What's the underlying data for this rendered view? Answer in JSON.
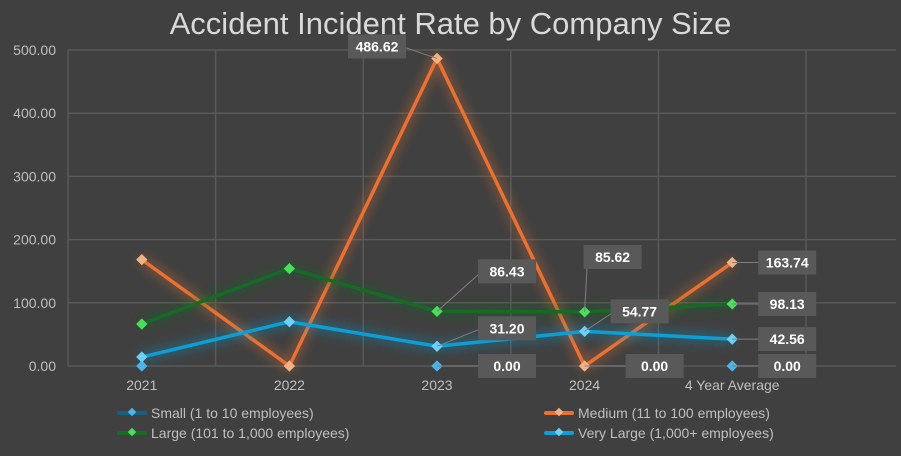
{
  "chart_data": {
    "type": "line",
    "title": "Accident Incident Rate by Company Size",
    "categories": [
      "2021",
      "2022",
      "2023",
      "2024",
      "4 Year Average"
    ],
    "ylim": [
      0,
      500
    ],
    "yticks": [
      "0.00",
      "100.00",
      "200.00",
      "300.00",
      "400.00",
      "500.00"
    ],
    "grid": true,
    "legend_position": "bottom",
    "series": [
      {
        "name": "Small (1 to 10 employees)",
        "color": "#156082",
        "marker": "#4fb3e8",
        "values": [
          0,
          0,
          0,
          0,
          0
        ],
        "labels": [
          null,
          null,
          "0.00",
          "0.00",
          "0.00"
        ]
      },
      {
        "name": "Medium (11 to 100 employees)",
        "color": "#e97132",
        "marker": "#f4b183",
        "values": [
          168.34,
          0,
          486.62,
          0,
          163.74
        ],
        "labels": [
          null,
          null,
          "486.62",
          null,
          "163.74"
        ]
      },
      {
        "name": "Large (101 to 1,000 employees)",
        "color": "#196b24",
        "marker": "#4ade5a",
        "values": [
          66.4,
          154.07,
          86.43,
          85.62,
          98.13
        ],
        "labels": [
          null,
          null,
          "86.43",
          "85.62",
          "98.13"
        ]
      },
      {
        "name": "Very Large (1,000+ employees)",
        "color": "#0f9ed5",
        "marker": "#6fd0f5",
        "values": [
          14.2,
          70.07,
          31.2,
          54.77,
          42.56
        ],
        "labels": [
          null,
          null,
          "31.20",
          "54.77",
          "42.56"
        ]
      }
    ]
  }
}
